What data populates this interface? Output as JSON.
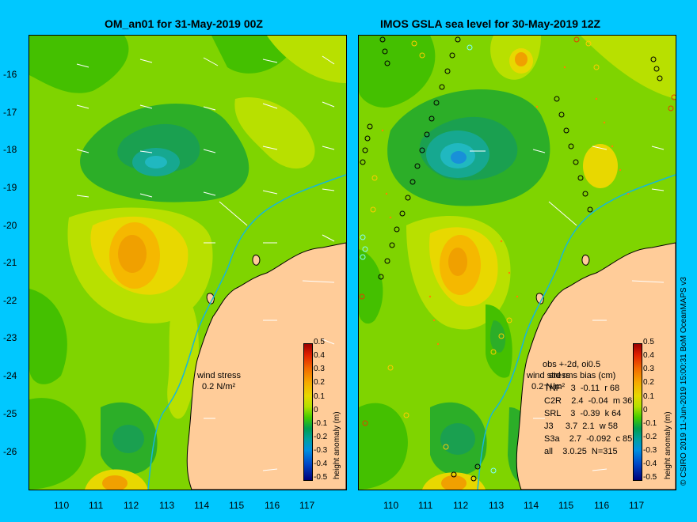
{
  "left_panel": {
    "title": "OM_an01 for 31-May-2019 00Z",
    "wind_label": "wind stress",
    "wind_scale": "0.2 N/m²"
  },
  "right_panel": {
    "title": "IMOS GSLA sea level  for 30-May-2019 12Z",
    "obs_header": "obs +-2d, oi0.5",
    "stats_header": "std rms bias (cm)",
    "stats": [
      "TNF    3  -0.11  r 68",
      "C2R    2.4  -0.04  m 36",
      "SRL    3  -0.39  k 64",
      "J3     3.7  2.1  w 58",
      "S3a    2.7  -0.092  c 85",
      "all    3.0.25  N=315"
    ],
    "wind_label": "wind stress",
    "wind_scale": "0.2 N/m²"
  },
  "colorbar": {
    "ticks": [
      "0.5",
      "0.4",
      "0.3",
      "0.2",
      "0.1",
      "0",
      "-0.1",
      "-0.2",
      "-0.3",
      "-0.4",
      "-0.5"
    ],
    "label": "height anomaly (m)"
  },
  "credit": "© CSIRO 2019   11-Jun-2019 15:00:31  BoM OceanMAPS v3",
  "lat_ticks": [
    "-16",
    "-17",
    "-18",
    "-19",
    "-20",
    "-21",
    "-22",
    "-23",
    "-24",
    "-25",
    "-26"
  ],
  "lon_ticks": [
    "110",
    "111",
    "112",
    "113",
    "114",
    "115",
    "116",
    "117"
  ],
  "colors": {
    "background": "#00c8ff",
    "land": "#ffcc99",
    "base": "#7fd400"
  }
}
